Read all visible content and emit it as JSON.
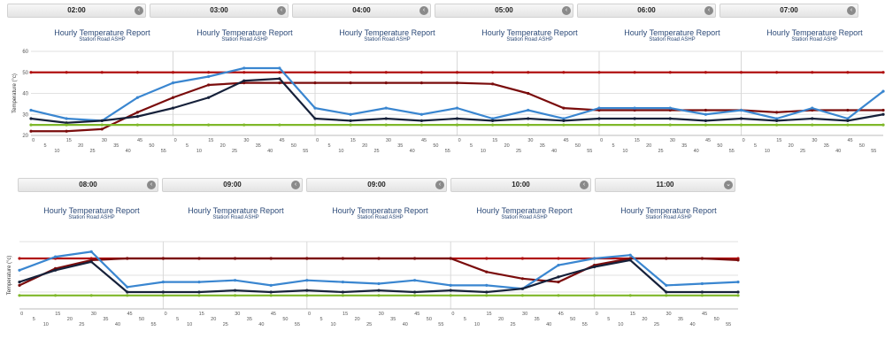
{
  "colors": {
    "red_series": "#b01010",
    "darkred_series": "#7a0c0c",
    "blue_series": "#3a86d0",
    "navy_series": "#16213a",
    "green_series": "#7fb82a",
    "grid": "#e2e2e2"
  },
  "strip1": {
    "tabs": [
      {
        "label": "02:00",
        "icon": "chevron-left-icon"
      },
      {
        "label": "03:00",
        "icon": "chevron-left-icon"
      },
      {
        "label": "04:00",
        "icon": "chevron-left-icon"
      },
      {
        "label": "05:00",
        "icon": "chevron-left-icon"
      },
      {
        "label": "06:00",
        "icon": "chevron-left-icon"
      },
      {
        "label": "07:00",
        "icon": "chevron-left-icon"
      }
    ],
    "panel_titles": [
      "Hourly Temperature Report",
      "Hourly Temperature Report",
      "Hourly Temperature Report",
      "Hourly Temperature Report",
      "Hourly Temperature Report",
      "Hourly Temperature Report"
    ],
    "panel_subtitles": [
      "Station Road ASHP",
      "Station Road ASHP",
      "Station Road ASHP",
      "Station Road ASHP",
      "Station Road ASHP",
      "Station Road ASHP"
    ]
  },
  "strip2": {
    "tabs": [
      {
        "label": "08:00",
        "icon": "chevron-left-icon"
      },
      {
        "label": "09:00",
        "icon": "chevron-left-icon"
      },
      {
        "label": "09:00",
        "icon": "chevron-left-icon"
      },
      {
        "label": "10:00",
        "icon": "chevron-left-icon"
      },
      {
        "label": "11:00",
        "icon": "chevron-down-icon"
      }
    ],
    "panel_titles": [
      "Hourly Temperature Report",
      "Hourly Temperature Report",
      "Hourly Temperature Report",
      "Hourly Temperature Report",
      "Hourly Temperature Report"
    ],
    "panel_subtitles": [
      "Station Road ASHP",
      "Station Road ASHP",
      "Station Road ASHP",
      "Station Road ASHP",
      "Station Road ASHP"
    ]
  },
  "chart_data": [
    {
      "type": "line",
      "ylabel": "Temperature (°c)",
      "ylim": [
        20,
        60
      ],
      "yticks": [
        20,
        30,
        40,
        50,
        60
      ],
      "x": [
        0,
        15,
        30,
        45,
        60,
        75,
        90,
        105,
        120,
        135,
        150,
        165,
        180,
        195,
        210,
        225,
        240,
        255,
        270,
        285,
        300,
        315,
        330,
        345,
        360
      ],
      "x_tick_labels": [
        "0",
        "5",
        "10",
        "15",
        "20",
        "25",
        "30",
        "35",
        "40",
        "45",
        "50",
        "55",
        "0",
        "5",
        "10",
        "15",
        "20",
        "25",
        "30",
        "35",
        "40",
        "45",
        "50",
        "55",
        "0",
        "5",
        "10",
        "15",
        "20",
        "25",
        "30",
        "35",
        "40",
        "45",
        "50",
        "55",
        "0",
        "5",
        "10",
        "15",
        "20",
        "25",
        "30",
        "35",
        "40",
        "45",
        "50",
        "55",
        "0",
        "5",
        "10",
        "15",
        "20",
        "25",
        "30",
        "35",
        "40",
        "45",
        "50",
        "55",
        "0",
        "5",
        "10",
        "15",
        "20",
        "25",
        "30",
        "35",
        "40",
        "45",
        "50",
        "55"
      ],
      "series": [
        {
          "color": "#b01010",
          "values": [
            50,
            50,
            50,
            50,
            50,
            50,
            50,
            50,
            50,
            50,
            50,
            50,
            50,
            50,
            50,
            50,
            50,
            50,
            50,
            50,
            50,
            50,
            50,
            50,
            50
          ]
        },
        {
          "color": "#7a0c0c",
          "values": [
            22,
            22,
            23,
            31,
            38,
            44,
            45,
            45,
            45,
            45,
            45,
            45,
            45,
            44.5,
            40,
            33,
            32,
            32,
            32,
            32,
            32,
            31,
            32,
            32,
            32
          ]
        },
        {
          "color": "#3a86d0",
          "values": [
            32,
            28,
            27,
            38,
            45,
            48,
            52,
            52,
            33,
            30,
            33,
            30,
            33,
            28,
            32,
            28,
            33,
            33,
            33,
            30,
            32,
            28,
            33,
            28,
            41
          ]
        },
        {
          "color": "#16213a",
          "values": [
            28,
            26,
            27,
            29,
            33,
            38,
            46,
            47,
            28,
            27,
            28,
            27,
            28,
            27,
            28,
            27,
            28,
            28,
            28,
            27,
            28,
            27,
            28,
            27,
            30
          ]
        },
        {
          "color": "#7fb82a",
          "values": [
            25,
            25,
            25,
            25,
            25,
            25,
            25,
            25,
            25,
            25,
            25,
            25,
            25,
            25,
            25,
            25,
            25,
            25,
            25,
            25,
            25,
            25,
            25,
            25,
            25
          ]
        }
      ]
    },
    {
      "type": "line",
      "ylabel": "Temperature (°c)",
      "ylim": [
        20,
        60
      ],
      "x": [
        0,
        15,
        30,
        45,
        60,
        75,
        90,
        105,
        120,
        135,
        150,
        165,
        180,
        195,
        210,
        225,
        240,
        255,
        270,
        285,
        300
      ],
      "x_tick_labels": [
        "0",
        "5",
        "10",
        "15",
        "20",
        "25",
        "30",
        "35",
        "40",
        "45",
        "50",
        "55",
        "0",
        "5",
        "10",
        "15",
        "20",
        "25",
        "30",
        "35",
        "40",
        "45",
        "50",
        "55",
        "0",
        "5",
        "10",
        "15",
        "20",
        "25",
        "30",
        "35",
        "40",
        "45",
        "50",
        "55",
        "0",
        "5",
        "10",
        "15",
        "20",
        "25",
        "30",
        "35",
        "40",
        "45",
        "50",
        "55",
        "0",
        "5",
        "10",
        "15",
        "20",
        "25",
        "30",
        "35",
        "40",
        "45",
        "50",
        "55"
      ],
      "series": [
        {
          "color": "#b01010",
          "values": [
            50,
            50,
            50,
            50,
            50,
            50,
            50,
            50,
            50,
            50,
            50,
            50,
            50,
            50,
            50,
            50,
            50,
            50,
            50,
            50,
            50
          ]
        },
        {
          "color": "#7a0c0c",
          "values": [
            34,
            44,
            49,
            50,
            50,
            50,
            50,
            50,
            50,
            50,
            50,
            50,
            50,
            42,
            38,
            36,
            46,
            50,
            50,
            50,
            49
          ]
        },
        {
          "color": "#3a86d0",
          "values": [
            43,
            51,
            54,
            33,
            36,
            36,
            37,
            34,
            37,
            36,
            35,
            37,
            34,
            34,
            32,
            46,
            50,
            52,
            34,
            35,
            36
          ]
        },
        {
          "color": "#16213a",
          "values": [
            36,
            43,
            48,
            30,
            30,
            30,
            31,
            30,
            31,
            30,
            31,
            30,
            31,
            30,
            32,
            39,
            45,
            49,
            30,
            30,
            30
          ]
        },
        {
          "color": "#7fb82a",
          "values": [
            28,
            28,
            28,
            28,
            28,
            28,
            28,
            28,
            28,
            28,
            28,
            28,
            28,
            28,
            28,
            28,
            28,
            28,
            28,
            28,
            28
          ]
        }
      ]
    }
  ]
}
